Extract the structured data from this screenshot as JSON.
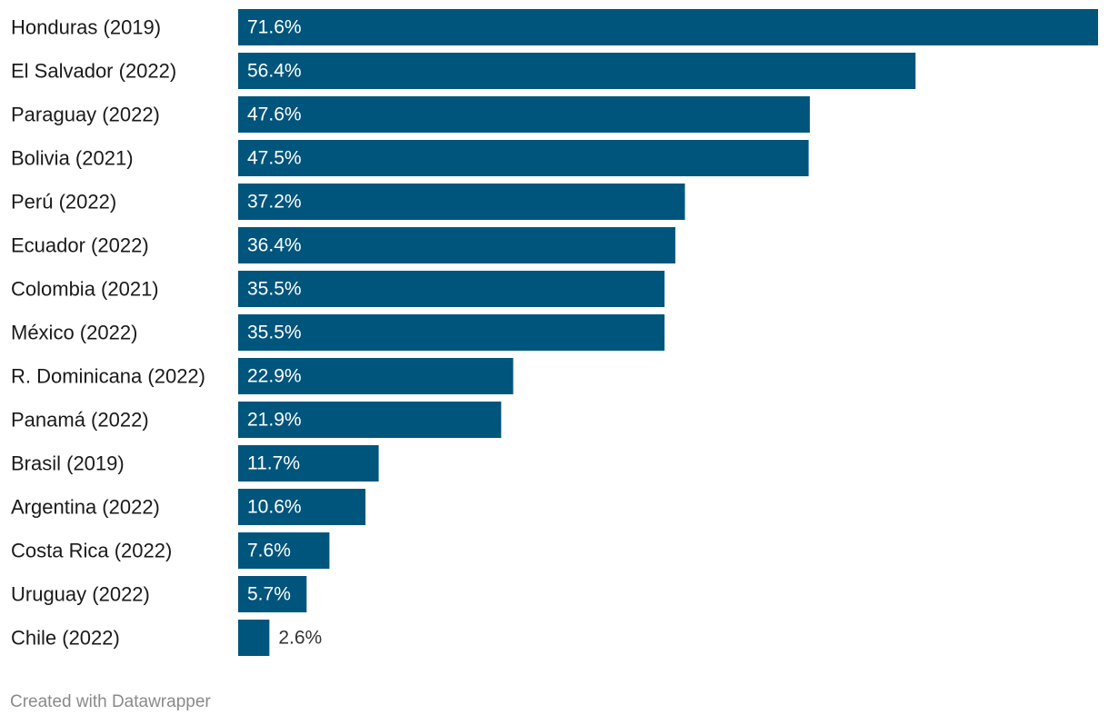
{
  "chart_data": {
    "type": "bar",
    "orientation": "horizontal",
    "categories": [
      "Honduras (2019)",
      "El Salvador (2022)",
      "Paraguay (2022)",
      "Bolivia (2021)",
      "Perú (2022)",
      "Ecuador (2022)",
      "Colombia (2021)",
      "México (2022)",
      "R. Dominicana (2022)",
      "Panamá (2022)",
      "Brasil (2019)",
      "Argentina (2022)",
      "Costa Rica (2022)",
      "Uruguay (2022)",
      "Chile (2022)"
    ],
    "values": [
      71.6,
      56.4,
      47.6,
      47.5,
      37.2,
      36.4,
      35.5,
      35.5,
      22.9,
      21.9,
      11.7,
      10.6,
      7.6,
      5.7,
      2.6
    ],
    "value_labels": [
      "71.6%",
      "56.4%",
      "47.6%",
      "47.5%",
      "37.2%",
      "36.4%",
      "35.5%",
      "35.5%",
      "22.9%",
      "21.9%",
      "11.7%",
      "10.6%",
      "7.6%",
      "5.7%",
      "2.6%"
    ],
    "unit": "%",
    "xlim": [
      0,
      71.6
    ],
    "grid": false,
    "bar_color": "#00557c",
    "inside_label_color": "#ffffff",
    "outside_label_color": "#333333"
  },
  "footer": {
    "credit": "Created with Datawrapper"
  }
}
